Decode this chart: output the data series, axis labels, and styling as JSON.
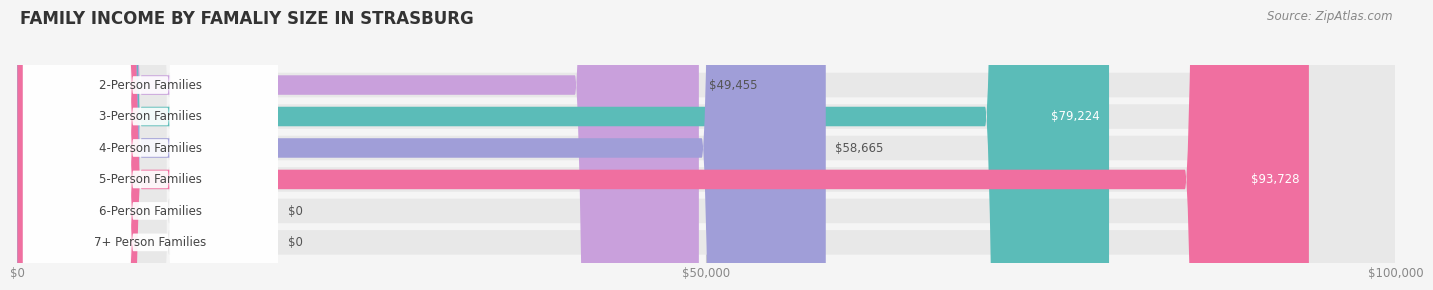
{
  "title": "FAMILY INCOME BY FAMALIY SIZE IN STRASBURG",
  "source": "Source: ZipAtlas.com",
  "categories": [
    "2-Person Families",
    "3-Person Families",
    "4-Person Families",
    "5-Person Families",
    "6-Person Families",
    "7+ Person Families"
  ],
  "values": [
    49455,
    79224,
    58665,
    93728,
    0,
    0
  ],
  "bar_colors": [
    "#c9a0dc",
    "#5bbcb8",
    "#a09ed8",
    "#f06fa0",
    "#f5c9a0",
    "#f5a8a8"
  ],
  "bg_color": "#f5f5f5",
  "bar_bg_color": "#e8e8e8",
  "xlim": [
    0,
    100000
  ],
  "xticks": [
    0,
    50000,
    100000
  ],
  "xtick_labels": [
    "$0",
    "$50,000",
    "$100,000"
  ],
  "title_fontsize": 12,
  "label_fontsize": 8.5,
  "value_fontsize": 8.5,
  "source_fontsize": 8.5
}
